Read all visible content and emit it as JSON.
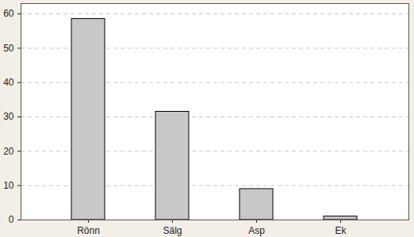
{
  "chart_data": {
    "type": "bar",
    "categories": [
      "Rönn",
      "Sälg",
      "Asp",
      "Ek"
    ],
    "values": [
      58.5,
      31.5,
      9,
      1
    ],
    "color": "#c8c8c8",
    "ylim": [
      0,
      63
    ],
    "yticks": [
      0,
      10,
      20,
      30,
      40,
      50,
      60
    ],
    "grid": true
  }
}
